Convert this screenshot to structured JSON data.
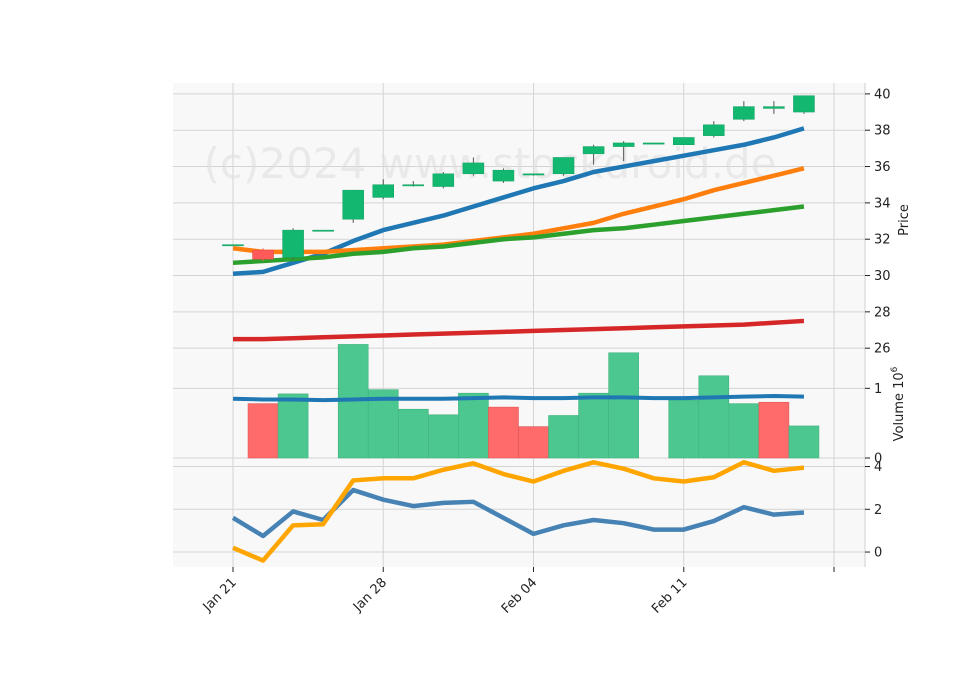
{
  "watermark": "(c)2024 www.stockdroid.de",
  "colors": {
    "up": "#13b870",
    "down": "#ff5a5a",
    "vol_up": "#4cc78f",
    "vol_down": "#ff6b6b",
    "ma1": "#1f77b4",
    "ma2": "#ff7f0e",
    "ma3": "#2ca02c",
    "ma4": "#d62728",
    "ind1": "#4682b4",
    "ind2": "#ffa500",
    "vol_ma": "#1f77b4"
  },
  "chart_data": {
    "type": "candlestick",
    "x_tick_labels": [
      "Jan 21",
      "Jan 28",
      "Feb 04",
      "Feb 11"
    ],
    "x_tick_index": [
      0,
      5,
      10,
      15
    ],
    "price_panel": {
      "ylabel": "Price",
      "yticks": [
        26,
        28,
        30,
        32,
        34,
        36,
        38,
        40
      ],
      "ylim": [
        25.9,
        40.6
      ],
      "candles": [
        {
          "o": 31.7,
          "h": 31.7,
          "l": 31.7,
          "c": 31.7
        },
        {
          "o": 31.4,
          "h": 31.5,
          "l": 30.8,
          "c": 30.9
        },
        {
          "o": 31.0,
          "h": 32.6,
          "l": 30.9,
          "c": 32.5
        },
        {
          "o": 32.5,
          "h": 32.5,
          "l": 32.5,
          "c": 32.5
        },
        {
          "o": 33.1,
          "h": 34.7,
          "l": 32.9,
          "c": 34.7
        },
        {
          "o": 34.3,
          "h": 35.3,
          "l": 34.2,
          "c": 35.0
        },
        {
          "o": 35.0,
          "h": 35.2,
          "l": 34.9,
          "c": 35.0
        },
        {
          "o": 34.9,
          "h": 35.7,
          "l": 34.8,
          "c": 35.6
        },
        {
          "o": 35.6,
          "h": 36.5,
          "l": 35.5,
          "c": 36.2
        },
        {
          "o": 35.2,
          "h": 35.9,
          "l": 35.1,
          "c": 35.8
        },
        {
          "o": 35.6,
          "h": 35.6,
          "l": 35.5,
          "c": 35.6
        },
        {
          "o": 35.6,
          "h": 36.5,
          "l": 35.5,
          "c": 36.5
        },
        {
          "o": 36.7,
          "h": 37.2,
          "l": 36.1,
          "c": 37.1
        },
        {
          "o": 37.1,
          "h": 37.4,
          "l": 36.3,
          "c": 37.3
        },
        {
          "o": 37.3,
          "h": 37.3,
          "l": 37.3,
          "c": 37.3
        },
        {
          "o": 37.2,
          "h": 37.6,
          "l": 37.2,
          "c": 37.6
        },
        {
          "o": 37.7,
          "h": 38.5,
          "l": 37.6,
          "c": 38.3
        },
        {
          "o": 38.6,
          "h": 39.6,
          "l": 38.5,
          "c": 39.3
        },
        {
          "o": 39.2,
          "h": 39.6,
          "l": 38.9,
          "c": 39.3
        },
        {
          "o": 39.0,
          "h": 39.9,
          "l": 38.9,
          "c": 39.9
        }
      ],
      "moving_averages": [
        {
          "color_key": "ma1",
          "values": [
            30.1,
            30.2,
            30.7,
            31.2,
            31.9,
            32.5,
            32.9,
            33.3,
            33.8,
            34.3,
            34.8,
            35.2,
            35.7,
            36.0,
            36.3,
            36.6,
            36.9,
            37.2,
            37.6,
            38.1
          ]
        },
        {
          "color_key": "ma2",
          "values": [
            31.5,
            31.3,
            31.3,
            31.3,
            31.4,
            31.5,
            31.6,
            31.7,
            31.9,
            32.1,
            32.3,
            32.6,
            32.9,
            33.4,
            33.8,
            34.2,
            34.7,
            35.1,
            35.5,
            35.9
          ]
        },
        {
          "color_key": "ma3",
          "values": [
            30.7,
            30.8,
            30.9,
            31.0,
            31.2,
            31.3,
            31.5,
            31.6,
            31.8,
            32.0,
            32.1,
            32.3,
            32.5,
            32.6,
            32.8,
            33.0,
            33.2,
            33.4,
            33.6,
            33.8
          ]
        },
        {
          "color_key": "ma4",
          "values": [
            26.5,
            26.5,
            26.55,
            26.6,
            26.65,
            26.7,
            26.75,
            26.8,
            26.85,
            26.9,
            26.95,
            27.0,
            27.05,
            27.1,
            27.15,
            27.2,
            27.25,
            27.3,
            27.4,
            27.5
          ]
        }
      ]
    },
    "volume_panel": {
      "ylabel": "Volume  10",
      "ylabel_exp": "6",
      "yticks": [
        0,
        1
      ],
      "ylim": [
        0,
        1.55
      ],
      "values": [
        0.0,
        0.78,
        0.92,
        0.0,
        1.63,
        0.98,
        0.7,
        0.62,
        0.93,
        0.73,
        0.45,
        0.61,
        0.93,
        1.51,
        0.0,
        0.83,
        1.18,
        0.78,
        0.8,
        0.46
      ],
      "up": [
        true,
        false,
        true,
        true,
        true,
        true,
        true,
        true,
        true,
        false,
        false,
        true,
        true,
        true,
        true,
        true,
        true,
        true,
        false,
        true
      ],
      "ma_values": [
        0.85,
        0.84,
        0.84,
        0.83,
        0.84,
        0.85,
        0.85,
        0.85,
        0.86,
        0.87,
        0.86,
        0.86,
        0.87,
        0.87,
        0.86,
        0.86,
        0.87,
        0.88,
        0.89,
        0.88
      ]
    },
    "indicator_panel": {
      "yticks": [
        0,
        2,
        4
      ],
      "ylim": [
        -0.7,
        4.4
      ],
      "series": [
        {
          "color_key": "ind1",
          "values": [
            1.6,
            0.75,
            1.9,
            1.5,
            2.9,
            2.45,
            2.15,
            2.3,
            2.35,
            1.6,
            0.85,
            1.25,
            1.5,
            1.35,
            1.05,
            1.05,
            1.45,
            2.1,
            1.75,
            1.85
          ]
        },
        {
          "color_key": "ind2",
          "values": [
            0.2,
            -0.4,
            1.25,
            1.3,
            3.35,
            3.45,
            3.45,
            3.85,
            4.15,
            3.65,
            3.3,
            3.8,
            4.2,
            3.9,
            3.45,
            3.3,
            3.5,
            4.2,
            3.8,
            3.95
          ]
        }
      ]
    }
  }
}
